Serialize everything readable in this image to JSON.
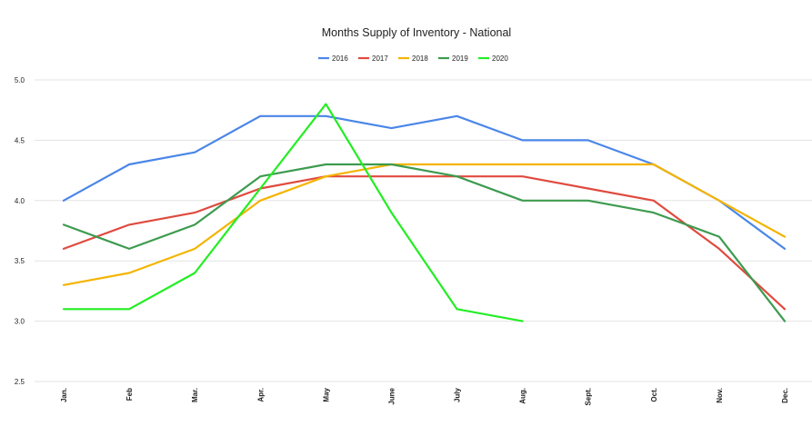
{
  "chart_data": {
    "type": "line",
    "title": "Months Supply of Inventory - National",
    "xlabel": "",
    "ylabel": "",
    "categories": [
      "Jan.",
      "Feb",
      "Mar.",
      "Apr.",
      "May",
      "June",
      "July",
      "Aug.",
      "Sept.",
      "Oct.",
      "Nov.",
      "Dec."
    ],
    "ylim": [
      2.5,
      5.0
    ],
    "yticks": [
      "2.5",
      "3.0",
      "3.5",
      "4.0",
      "4.5",
      "5.0"
    ],
    "grid": true,
    "legend_position": "top",
    "series": [
      {
        "name": "2016",
        "color": "#4a86e8",
        "values": [
          4.0,
          4.3,
          4.4,
          4.7,
          4.7,
          4.6,
          4.7,
          4.5,
          4.5,
          4.3,
          4.0,
          3.6
        ]
      },
      {
        "name": "2017",
        "color": "#e04a3f",
        "values": [
          3.6,
          3.8,
          3.9,
          4.1,
          4.2,
          4.2,
          4.2,
          4.2,
          4.1,
          4.0,
          3.6,
          3.1
        ]
      },
      {
        "name": "2018",
        "color": "#f4b400",
        "values": [
          3.3,
          3.4,
          3.6,
          4.0,
          4.2,
          4.3,
          4.3,
          4.3,
          4.3,
          4.3,
          4.0,
          3.7
        ]
      },
      {
        "name": "2019",
        "color": "#3d9b4f",
        "values": [
          3.8,
          3.6,
          3.8,
          4.2,
          4.3,
          4.3,
          4.2,
          4.0,
          4.0,
          3.9,
          3.7,
          3.0
        ]
      },
      {
        "name": "2020",
        "color": "#22ee22",
        "values": [
          3.1,
          3.1,
          3.4,
          4.1,
          4.8,
          3.9,
          3.1,
          3.0,
          null,
          null,
          null,
          null
        ]
      }
    ]
  }
}
